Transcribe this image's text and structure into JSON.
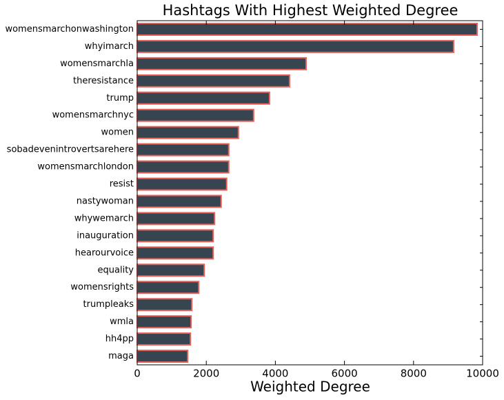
{
  "chart_data": {
    "type": "barh",
    "title": "Hashtags With Highest Weighted Degree",
    "x_label": "Weighted Degree",
    "categories": [
      "womensmarchonwashington",
      "whyimarch",
      "womensmarchla",
      "theresistance",
      "trump",
      "womensmarchnyc",
      "women",
      "sobadevenintrovertsarehere",
      "womensmarchlondon",
      "resist",
      "nastywoman",
      "whywemarch",
      "inauguration",
      "hearourvoice",
      "equality",
      "womensrights",
      "trumpleaks",
      "wmla",
      "hh4pp",
      "maga"
    ],
    "values": [
      9840,
      9160,
      4890,
      4410,
      3830,
      3370,
      2930,
      2650,
      2650,
      2590,
      2430,
      2240,
      2200,
      2200,
      1940,
      1780,
      1580,
      1560,
      1540,
      1460
    ],
    "color": "#36454f",
    "edge_color": "#e8625a",
    "xlim": [
      0,
      10000
    ],
    "xticks": [
      0,
      2000,
      4000,
      6000,
      8000,
      10000
    ]
  }
}
